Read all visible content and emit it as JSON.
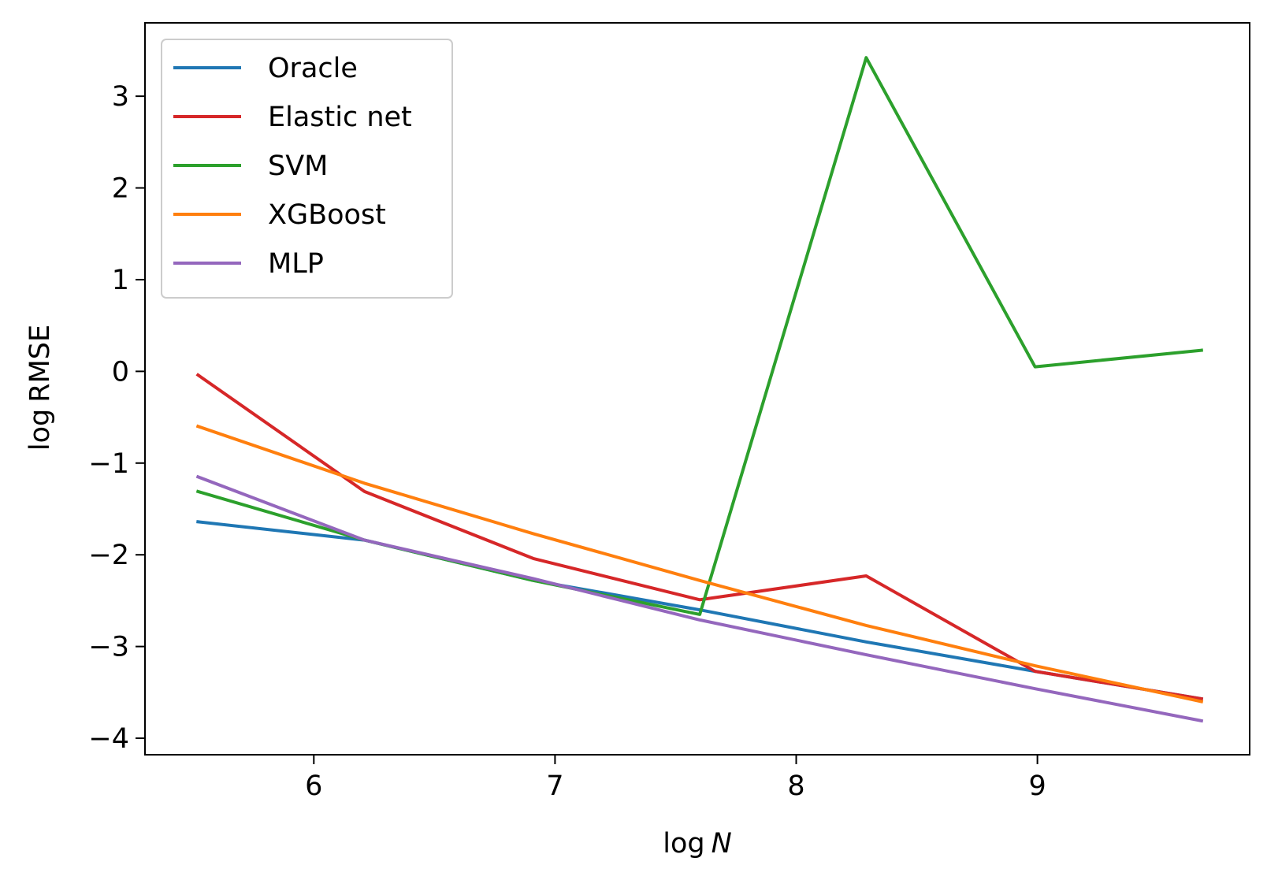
{
  "chart_data": {
    "type": "line",
    "xlabel": "log N",
    "ylabel": "log RMSE",
    "xlim": [
      5.3,
      9.88
    ],
    "ylim": [
      -4.18,
      3.8
    ],
    "x_ticks": [
      6,
      7,
      8,
      9
    ],
    "y_ticks": [
      -4,
      -3,
      -2,
      -1,
      0,
      1,
      2,
      3
    ],
    "x_tick_labels": [
      "6",
      "7",
      "8",
      "9"
    ],
    "y_tick_labels": [
      "−4",
      "−3",
      "−2",
      "−1",
      "0",
      "1",
      "2",
      "3"
    ],
    "grid": false,
    "legend_position": "top-left",
    "x": [
      5.52,
      6.21,
      6.91,
      7.6,
      8.29,
      8.99,
      9.68
    ],
    "series": [
      {
        "name": "Oracle",
        "color": "#1f77b4",
        "values": [
          -1.64,
          -1.84,
          -2.28,
          -2.6,
          -2.95,
          -3.27,
          -3.57
        ]
      },
      {
        "name": "Elastic net",
        "color": "#d62728",
        "values": [
          -0.04,
          -1.31,
          -2.04,
          -2.49,
          -2.23,
          -3.27,
          -3.57
        ]
      },
      {
        "name": "SVM",
        "color": "#2ca02c",
        "values": [
          -1.31,
          -1.84,
          -2.28,
          -2.65,
          3.42,
          0.05,
          0.23
        ]
      },
      {
        "name": "XGBoost",
        "color": "#ff7f0e",
        "values": [
          -0.6,
          -1.22,
          -1.77,
          -2.28,
          -2.77,
          -3.21,
          -3.6
        ]
      },
      {
        "name": "MLP",
        "color": "#9467bd",
        "values": [
          -1.15,
          -1.84,
          -2.26,
          -2.71,
          -3.09,
          -3.46,
          -3.81
        ]
      }
    ]
  }
}
